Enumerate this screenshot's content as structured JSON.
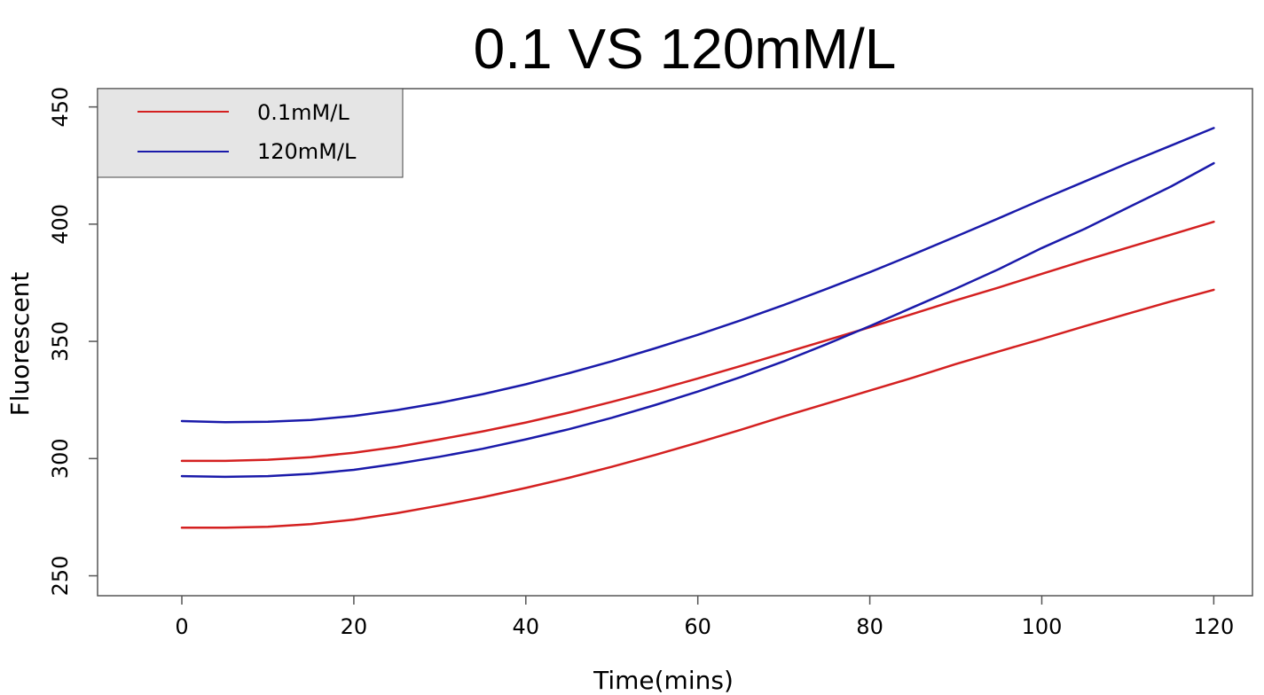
{
  "chart_data": {
    "type": "line",
    "title": "0.1 VS 120mM/L",
    "xlabel": "Time(mins)",
    "ylabel": "Fluorescent",
    "xlim": [
      -9.8,
      124.5
    ],
    "ylim": [
      241.5,
      457.8
    ],
    "x_ticks": [
      0,
      20,
      40,
      60,
      80,
      100,
      120
    ],
    "y_ticks": [
      250,
      300,
      350,
      400,
      450
    ],
    "grid": false,
    "legend": {
      "position": "top-left",
      "entries": [
        {
          "label": "0.1mM/L",
          "color": "#d42020"
        },
        {
          "label": "120mM/L",
          "color": "#1a1aaa"
        }
      ]
    },
    "x": [
      0,
      5,
      10,
      15,
      20,
      25,
      30,
      35,
      40,
      45,
      50,
      55,
      60,
      65,
      70,
      75,
      80,
      85,
      90,
      95,
      100,
      105,
      110,
      115,
      120
    ],
    "series": [
      {
        "name": "0.1mM/L",
        "color": "#d42020",
        "values": [
          299.0,
          299.0,
          299.5,
          300.6,
          302.5,
          305.0,
          308.2,
          311.6,
          315.4,
          319.6,
          324.2,
          329.0,
          334.2,
          339.5,
          345.0,
          350.5,
          356.0,
          361.7,
          367.5,
          373.0,
          378.8,
          384.5,
          390.0,
          395.5,
          401.0
        ]
      },
      {
        "name": "0.1mM/L",
        "color": "#d42020",
        "values": [
          270.5,
          270.5,
          270.9,
          272.0,
          274.0,
          276.7,
          280.0,
          283.5,
          287.5,
          291.8,
          296.5,
          301.5,
          306.8,
          312.3,
          318.0,
          323.5,
          329.0,
          334.5,
          340.3,
          345.7,
          351.0,
          356.5,
          361.8,
          367.0,
          372.0
        ]
      },
      {
        "name": "120mM/L",
        "color": "#1a1aaa",
        "values": [
          316.0,
          315.5,
          315.7,
          316.5,
          318.2,
          320.7,
          323.8,
          327.5,
          331.7,
          336.4,
          341.5,
          347.0,
          352.8,
          359.0,
          365.5,
          372.4,
          379.5,
          387.0,
          394.7,
          402.5,
          410.5,
          418.2,
          426.0,
          433.5,
          441.0
        ]
      },
      {
        "name": "120mM/L",
        "color": "#1a1aaa",
        "values": [
          292.5,
          292.2,
          292.5,
          293.5,
          295.2,
          297.8,
          300.8,
          304.2,
          308.2,
          312.5,
          317.4,
          322.8,
          328.6,
          334.8,
          341.5,
          348.8,
          356.5,
          364.5,
          372.5,
          380.8,
          389.8,
          398.0,
          407.0,
          416.0,
          426.0
        ]
      }
    ]
  }
}
